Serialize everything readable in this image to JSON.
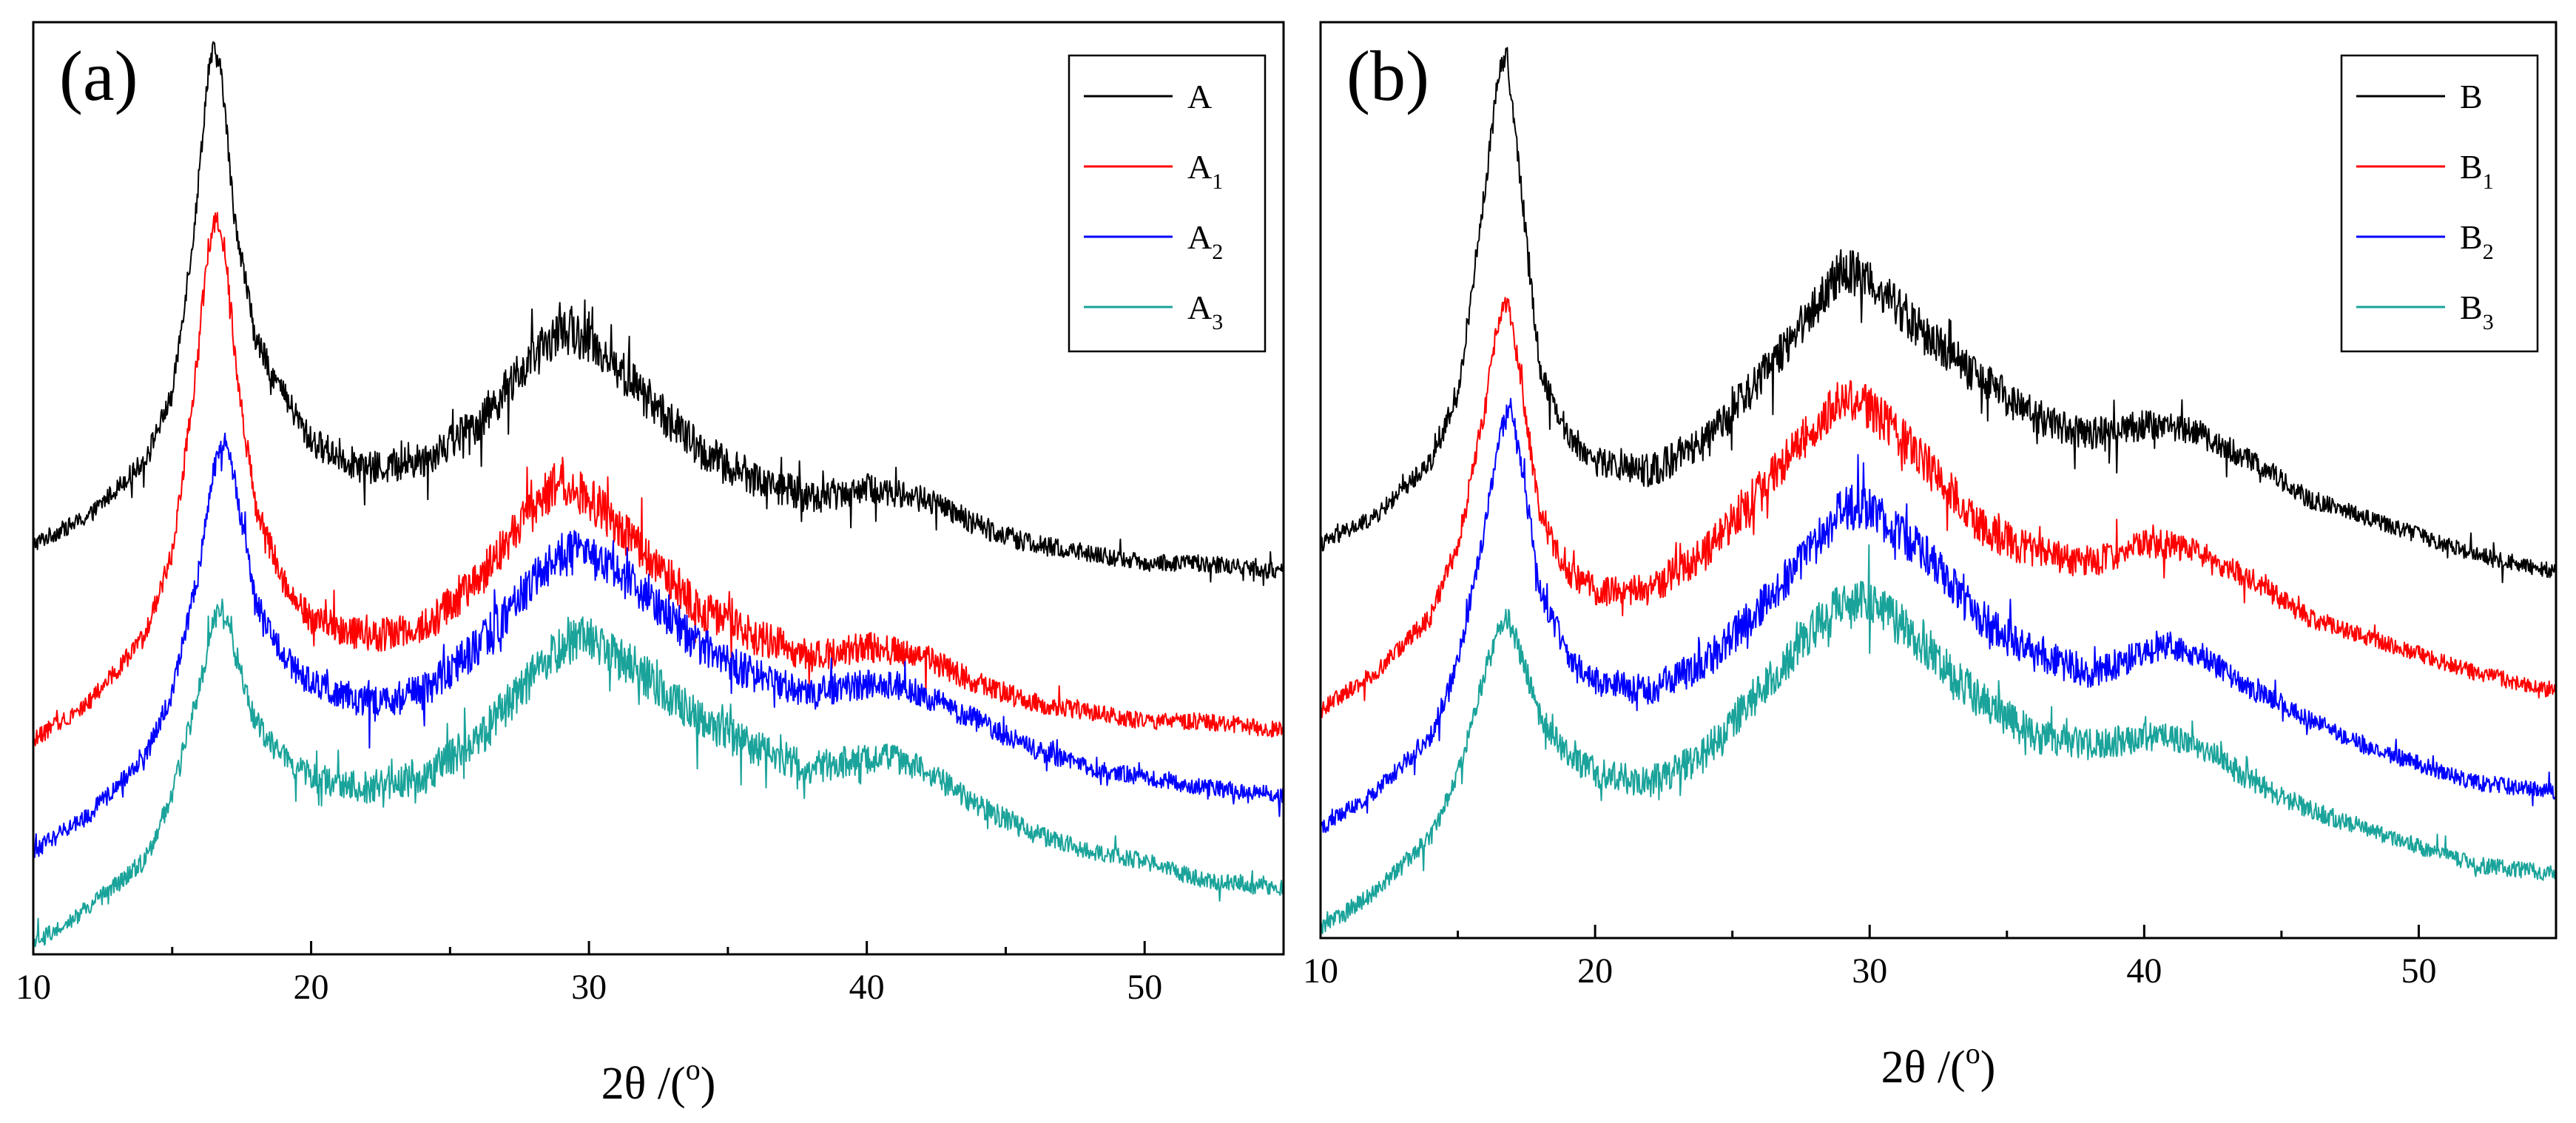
{
  "chart_data": [
    {
      "type": "line",
      "panel_label": "(a)",
      "xlabel": "2θ /(",
      "xlabel_sup": "o",
      "xlabel_end": ")",
      "ylabel": "",
      "xlim": [
        10,
        55
      ],
      "ylim": [
        0,
        100
      ],
      "x_ticks": [
        10,
        20,
        30,
        40,
        50
      ],
      "x_tick_labels": [
        "10",
        "20",
        "30",
        "40",
        "50"
      ],
      "legend_position": "top-right",
      "series": [
        {
          "name": "A",
          "sub": "",
          "color": "#000000",
          "x": [
            10,
            12,
            14,
            15,
            15.8,
            16.3,
            16.5,
            16.8,
            17.2,
            18,
            19,
            20,
            22,
            24,
            26,
            28,
            29,
            30,
            32,
            34,
            36,
            38,
            40,
            42,
            44,
            46,
            48,
            50,
            52,
            55
          ],
          "y": [
            44,
            47,
            53,
            60,
            78,
            95,
            97,
            94,
            80,
            66,
            60,
            55,
            52,
            53,
            57,
            64,
            67,
            66,
            60,
            54,
            51,
            49,
            50,
            49,
            46,
            44,
            43,
            42,
            42,
            41
          ]
        },
        {
          "name": "A",
          "sub": "1",
          "color": "#ff0000",
          "x": [
            10,
            12,
            14,
            15,
            15.8,
            16.3,
            16.6,
            16.9,
            17.3,
            18,
            19,
            20,
            22,
            24,
            26,
            28,
            29,
            30,
            32,
            34,
            36,
            38,
            40,
            42,
            44,
            46,
            48,
            50,
            52,
            55
          ],
          "y": [
            23,
            27,
            34,
            43,
            61,
            76,
            79,
            76,
            63,
            48,
            40,
            36,
            34,
            35,
            40,
            48,
            51,
            49,
            43,
            37,
            34,
            32,
            33,
            32,
            29,
            27,
            26,
            25,
            25,
            24
          ]
        },
        {
          "name": "A",
          "sub": "2",
          "color": "#0000ff",
          "x": [
            10,
            12,
            14,
            15,
            16,
            16.5,
            16.9,
            17.3,
            18,
            19,
            20,
            22,
            24,
            26,
            28,
            29,
            30,
            32,
            34,
            36,
            38,
            40,
            41,
            42,
            44,
            46,
            48,
            50,
            52,
            55
          ],
          "y": [
            11,
            15,
            21,
            28,
            42,
            52,
            55,
            50,
            38,
            32,
            29,
            27,
            28,
            33,
            40,
            43,
            43,
            39,
            33,
            30,
            28,
            29,
            29,
            28,
            25,
            22,
            20,
            19,
            18,
            17
          ]
        },
        {
          "name": "A",
          "sub": "3",
          "color": "#1aa39a",
          "x": [
            10,
            12,
            14,
            15,
            16,
            16.5,
            16.8,
            17.2,
            18,
            19,
            20,
            22,
            24,
            26,
            28,
            29,
            30,
            32,
            34,
            36,
            38,
            40,
            41,
            42,
            44,
            46,
            48,
            50,
            52,
            55
          ],
          "y": [
            1,
            5,
            10,
            17,
            29,
            36,
            37,
            33,
            25,
            21,
            19,
            18,
            19,
            23,
            30,
            33,
            34,
            30,
            25,
            22,
            20,
            21,
            21,
            20,
            16,
            13,
            11,
            10,
            8,
            7
          ]
        }
      ]
    },
    {
      "type": "line",
      "panel_label": "(b)",
      "xlabel": "2θ /(",
      "xlabel_sup": "o",
      "xlabel_end": ")",
      "ylabel": "",
      "xlim": [
        10,
        55
      ],
      "ylim": [
        0,
        100
      ],
      "x_ticks": [
        10,
        20,
        30,
        40,
        50
      ],
      "x_tick_labels": [
        "10",
        "20",
        "30",
        "40",
        "50"
      ],
      "legend_position": "top-right",
      "series": [
        {
          "name": "B",
          "sub": "",
          "color": "#000000",
          "x": [
            10,
            12,
            14,
            15,
            16,
            16.5,
            16.8,
            17.2,
            18,
            19,
            20,
            22,
            24,
            26,
            28,
            29,
            30,
            32,
            34,
            36,
            38,
            40,
            41,
            42,
            44,
            46,
            48,
            50,
            52,
            55
          ],
          "y": [
            43,
            46,
            52,
            59,
            82,
            95,
            96,
            85,
            62,
            55,
            52,
            51,
            54,
            61,
            69,
            73,
            72,
            66,
            61,
            57,
            55,
            56,
            56,
            55,
            52,
            48,
            46,
            44,
            42,
            40
          ]
        },
        {
          "name": "B",
          "sub": "1",
          "color": "#ff0000",
          "x": [
            10,
            12,
            14,
            15,
            16,
            16.5,
            16.8,
            17.2,
            18,
            19,
            20,
            22,
            24,
            26,
            28,
            29,
            30,
            32,
            34,
            36,
            38,
            40,
            41,
            42,
            44,
            46,
            48,
            50,
            52,
            55
          ],
          "y": [
            25,
            29,
            35,
            43,
            58,
            68,
            70,
            63,
            46,
            40,
            38,
            38,
            42,
            49,
            56,
            59,
            58,
            52,
            45,
            42,
            41,
            43,
            43,
            42,
            39,
            35,
            33,
            31,
            29,
            27
          ]
        },
        {
          "name": "B",
          "sub": "2",
          "color": "#0000ff",
          "x": [
            10,
            12,
            14,
            15,
            16,
            16.5,
            16.9,
            17.3,
            18,
            19,
            20,
            22,
            24,
            26,
            28,
            29,
            30,
            32,
            34,
            36,
            38,
            40,
            41,
            42,
            44,
            46,
            48,
            50,
            52,
            55
          ],
          "y": [
            12,
            16,
            22,
            30,
            45,
            55,
            58,
            52,
            38,
            31,
            28,
            27,
            30,
            36,
            43,
            47,
            47,
            42,
            35,
            31,
            29,
            31,
            32,
            31,
            27,
            24,
            21,
            19,
            17,
            16
          ]
        },
        {
          "name": "B",
          "sub": "3",
          "color": "#1aa39a",
          "x": [
            10,
            12,
            14,
            15,
            16,
            16.5,
            16.8,
            17.2,
            18,
            19,
            20,
            22,
            24,
            26,
            28,
            29,
            30,
            32,
            34,
            36,
            38,
            40,
            41,
            42,
            44,
            46,
            48,
            50,
            52,
            55
          ],
          "y": [
            1,
            5,
            11,
            18,
            29,
            34,
            35,
            32,
            24,
            20,
            18,
            17,
            20,
            27,
            34,
            37,
            37,
            32,
            26,
            22,
            21,
            22,
            22,
            21,
            17,
            14,
            12,
            10,
            8,
            7
          ]
        }
      ]
    }
  ]
}
